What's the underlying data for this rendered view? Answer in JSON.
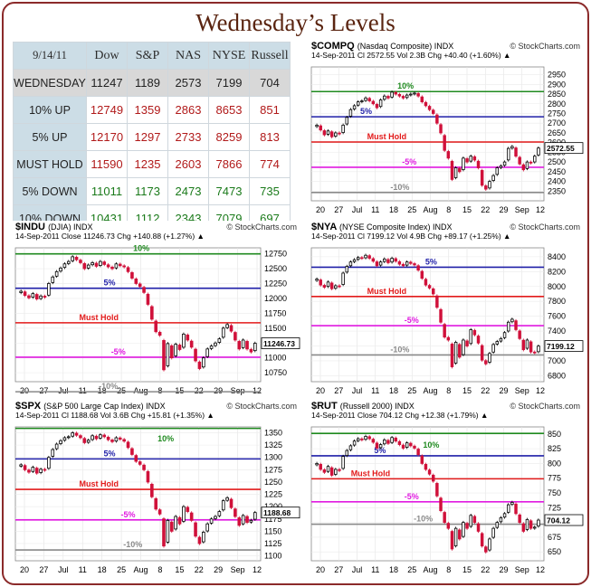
{
  "page_title": "Wednesday’s Levels",
  "table": {
    "date": "9/14/11",
    "columns": [
      "Dow",
      "S&P",
      "NAS",
      "NYSE",
      "Russell"
    ],
    "rows": [
      {
        "label": "WEDNESDAY",
        "values": [
          "11247",
          "1189",
          "2573",
          "7199",
          "704"
        ],
        "color": "#222222"
      },
      {
        "label": "10% UP",
        "values": [
          "12749",
          "1359",
          "2863",
          "8653",
          "851"
        ],
        "color": "#b11a1a"
      },
      {
        "label": "5% UP",
        "values": [
          "12170",
          "1297",
          "2733",
          "8259",
          "813"
        ],
        "color": "#b11a1a"
      },
      {
        "label": "MUST HOLD",
        "values": [
          "11590",
          "1235",
          "2603",
          "7866",
          "774"
        ],
        "color": "#b11a1a"
      },
      {
        "label": "5% DOWN",
        "values": [
          "11011",
          "1173",
          "2473",
          "7473",
          "735"
        ],
        "color": "#1a7a1a"
      },
      {
        "label": "10% DOWN",
        "values": [
          "10431",
          "1112",
          "2343",
          "7079",
          "697"
        ],
        "color": "#1a7a1a"
      }
    ]
  },
  "colors": {
    "green_level": "#1f8a1f",
    "blue_level": "#1f1fa8",
    "red_level": "#e21a1a",
    "magenta_level": "#e01ae0",
    "gray_level": "#8a8a8a",
    "up_bar": "#000000",
    "down_bar": "#d0113a"
  },
  "chart_data": [
    {
      "type": "candlestick",
      "id": "compq",
      "symbol": "$COMPQ",
      "name": "(Nasdaq Composite)",
      "tag": "INDX",
      "credit": "© StockCharts.com",
      "info": "14-Sep-2011    Cl 2572.55  Vol 2.3B  Chg +40.40 (+1.60%) ▲",
      "legend": "■ $COMPQ (Daily) 2572.55",
      "last_label": "2572.55",
      "ylim": [
        2300,
        2990
      ],
      "yticks": [
        2350,
        2400,
        2450,
        2500,
        2550,
        2600,
        2650,
        2700,
        2750,
        2800,
        2850,
        2900,
        2950
      ],
      "xticks": [
        "20",
        "27",
        "Jul",
        "11",
        "18",
        "25",
        "Aug",
        "8",
        "15",
        "22",
        "29",
        "Sep",
        "12"
      ],
      "levels": [
        {
          "value": 2863,
          "label": "10%",
          "color": "green",
          "label_pos": 0.37
        },
        {
          "value": 2733,
          "label": "5%",
          "color": "blue",
          "label_pos": 0.21
        },
        {
          "value": 2603,
          "label": "Must Hold",
          "color": "red",
          "label_pos": 0.24
        },
        {
          "value": 2473,
          "label": "-5%",
          "color": "magenta",
          "label_pos": 0.39
        },
        {
          "value": 2343,
          "label": "-10%",
          "color": "gray",
          "label_pos": 0.34
        }
      ],
      "closes": [
        2690,
        2665,
        2640,
        2660,
        2630,
        2650,
        2645,
        2690,
        2730,
        2770,
        2790,
        2810,
        2815,
        2830,
        2815,
        2800,
        2780,
        2820,
        2840,
        2830,
        2860,
        2850,
        2840,
        2830,
        2845,
        2850,
        2855,
        2840,
        2810,
        2790,
        2770,
        2750,
        2700,
        2650,
        2560,
        2520,
        2410,
        2470,
        2450,
        2520,
        2500,
        2530,
        2510,
        2470,
        2380,
        2360,
        2400,
        2430,
        2470,
        2480,
        2500,
        2570,
        2580,
        2530,
        2490,
        2460,
        2500,
        2495,
        2530,
        2572
      ]
    },
    {
      "type": "candlestick",
      "id": "indu",
      "symbol": "$INDU",
      "name": "(DJIA)",
      "tag": "INDX",
      "credit": "© StockCharts.com",
      "info": "14-Sep-2011    Close 11246.73  Chg +140.88 (+1.27%) ▲",
      "legend": "■ $INDU (Daily) 11246.73",
      "last_label": "11246.73",
      "ylim": [
        10600,
        12850
      ],
      "yticks": [
        10750,
        11000,
        11250,
        11500,
        11750,
        12000,
        12250,
        12500,
        12750
      ],
      "xticks": [
        "20",
        "27",
        "Jul",
        "11",
        "18",
        "25",
        "Aug",
        "8",
        "15",
        "22",
        "29",
        "Sep",
        "12"
      ],
      "levels": [
        {
          "value": 12749,
          "label": "10%",
          "color": "green",
          "label_pos": 0.48
        },
        {
          "value": 12170,
          "label": "5%",
          "color": "blue",
          "label_pos": 0.36
        },
        {
          "value": 11590,
          "label": "Must Hold",
          "color": "red",
          "label_pos": 0.26
        },
        {
          "value": 11011,
          "label": "-5%",
          "color": "magenta",
          "label_pos": 0.39
        },
        {
          "value": 10431,
          "label": "-10%",
          "color": "gray",
          "label_pos": 0.34
        }
      ],
      "closes": [
        12120,
        12050,
        12010,
        12080,
        11990,
        12040,
        12020,
        12250,
        12360,
        12450,
        12510,
        12580,
        12620,
        12700,
        12650,
        12600,
        12500,
        12560,
        12600,
        12540,
        12620,
        12570,
        12530,
        12500,
        12580,
        12550,
        12530,
        12450,
        12340,
        12250,
        12200,
        12100,
        11900,
        11650,
        11440,
        11380,
        10800,
        11240,
        11000,
        11230,
        11140,
        11400,
        11300,
        11180,
        10950,
        10820,
        11000,
        11150,
        11200,
        11250,
        11320,
        11500,
        11560,
        11450,
        11300,
        11150,
        11300,
        11150,
        11100,
        11246
      ]
    },
    {
      "type": "candlestick",
      "id": "nya",
      "symbol": "$NYA",
      "name": "(NYSE Composite Index)",
      "tag": "INDX",
      "credit": "© StockCharts.com",
      "info": "14-Sep-2011    Cl 7199.12  Vol 4.9B  Chg +89.17 (+1.25%) ▲",
      "legend": "■ $NYA (Daily) 7199.12",
      "last_label": "7199.12",
      "ylim": [
        6720,
        8520
      ],
      "yticks": [
        6800,
        7000,
        7200,
        7400,
        7600,
        7800,
        8000,
        8200,
        8400
      ],
      "xticks": [
        "20",
        "27",
        "Jul",
        "11",
        "18",
        "25",
        "Aug",
        "8",
        "15",
        "22",
        "29",
        "Sep",
        "12"
      ],
      "levels": [
        {
          "value": 8259,
          "label": "5%",
          "color": "blue",
          "label_pos": 0.49
        },
        {
          "value": 7866,
          "label": "Must Hold",
          "color": "red",
          "label_pos": 0.24
        },
        {
          "value": 7473,
          "label": "-5%",
          "color": "magenta",
          "label_pos": 0.4
        },
        {
          "value": 7079,
          "label": "-10%",
          "color": "gray",
          "label_pos": 0.34
        }
      ],
      "closes": [
        8100,
        8020,
        7990,
        8060,
        7970,
        8010,
        8000,
        8180,
        8270,
        8330,
        8360,
        8390,
        8380,
        8420,
        8380,
        8340,
        8280,
        8330,
        8370,
        8320,
        8380,
        8340,
        8300,
        8280,
        8330,
        8310,
        8290,
        8220,
        8110,
        8020,
        7980,
        7900,
        7720,
        7520,
        7320,
        7280,
        6920,
        7250,
        7050,
        7280,
        7200,
        7420,
        7350,
        7240,
        7010,
        6960,
        7100,
        7220,
        7260,
        7300,
        7380,
        7520,
        7560,
        7420,
        7300,
        7150,
        7280,
        7120,
        7110,
        7199
      ]
    },
    {
      "type": "candlestick",
      "id": "spx",
      "symbol": "$SPX",
      "name": "(S&P 500 Large Cap Index)",
      "tag": "INDX",
      "credit": "© StockCharts.com",
      "info": "14-Sep-2011    Cl 1188.68  Vol 3.6B  Chg +15.81 (+1.35%) ▲",
      "legend": "■ $SPX (Daily) 1188.68",
      "last_label": "1188.68",
      "ylim": [
        1090,
        1362
      ],
      "yticks": [
        1100,
        1125,
        1150,
        1175,
        1200,
        1225,
        1250,
        1275,
        1300,
        1325,
        1350
      ],
      "xticks": [
        "20",
        "27",
        "Jul",
        "11",
        "18",
        "25",
        "Aug",
        "8",
        "15",
        "22",
        "29",
        "Sep",
        "12"
      ],
      "levels": [
        {
          "value": 1359,
          "label": "",
          "color": "green",
          "label_pos": 0.5
        },
        {
          "value": 1297,
          "label": "5%",
          "color": "blue",
          "label_pos": 0.36
        },
        {
          "value": 1235,
          "label": "Must Hold",
          "color": "red",
          "label_pos": 0.26
        },
        {
          "value": 1173,
          "label": "-5%",
          "color": "magenta",
          "label_pos": 0.43
        },
        {
          "value": 1112,
          "label": "-10%",
          "color": "gray",
          "label_pos": 0.44
        }
      ],
      "extra_labels": [
        {
          "value": 1338,
          "label": "10%",
          "color": "green",
          "label_pos": 0.58
        }
      ],
      "closes": [
        1285,
        1275,
        1270,
        1280,
        1268,
        1276,
        1274,
        1300,
        1316,
        1327,
        1334,
        1340,
        1342,
        1350,
        1345,
        1340,
        1330,
        1335,
        1344,
        1338,
        1346,
        1342,
        1336,
        1332,
        1340,
        1337,
        1333,
        1320,
        1306,
        1292,
        1286,
        1275,
        1250,
        1220,
        1195,
        1185,
        1120,
        1172,
        1150,
        1180,
        1165,
        1200,
        1190,
        1172,
        1140,
        1125,
        1148,
        1165,
        1175,
        1180,
        1190,
        1212,
        1218,
        1198,
        1180,
        1162,
        1182,
        1168,
        1172,
        1188
      ]
    },
    {
      "type": "candlestick",
      "id": "rut",
      "symbol": "$RUT",
      "name": "(Russell 2000)",
      "tag": "INDX",
      "credit": "© StockCharts.com",
      "info": "14-Sep-2011    Close 704.12  Chg +12.38 (+1.79%) ▲",
      "legend": "■ $RUT (Daily) 704.12",
      "last_label": "704.12",
      "ylim": [
        635,
        862
      ],
      "yticks": [
        650,
        675,
        700,
        725,
        750,
        775,
        800,
        825,
        850
      ],
      "xticks": [
        "20",
        "27",
        "Jul",
        "11",
        "18",
        "25",
        "Aug",
        "8",
        "15",
        "22",
        "29",
        "Sep",
        "12"
      ],
      "levels": [
        {
          "value": 851,
          "label": "",
          "color": "green",
          "label_pos": 0.5
        },
        {
          "value": 813,
          "label": "5%",
          "color": "blue",
          "label_pos": 0.27
        },
        {
          "value": 774,
          "label": "Must Hold",
          "color": "red",
          "label_pos": 0.17
        },
        {
          "value": 735,
          "label": "-5%",
          "color": "magenta",
          "label_pos": 0.4
        },
        {
          "value": 697,
          "label": "-10%",
          "color": "gray",
          "label_pos": 0.44
        }
      ],
      "extra_labels": [
        {
          "value": 831,
          "label": "10%",
          "color": "green",
          "label_pos": 0.48
        }
      ],
      "closes": [
        800,
        790,
        785,
        795,
        780,
        790,
        788,
        812,
        822,
        830,
        838,
        842,
        840,
        846,
        842,
        836,
        826,
        832,
        840,
        834,
        844,
        838,
        832,
        826,
        835,
        830,
        826,
        815,
        800,
        790,
        782,
        770,
        745,
        720,
        700,
        690,
        655,
        690,
        672,
        700,
        690,
        712,
        700,
        685,
        660,
        650,
        672,
        690,
        700,
        708,
        715,
        730,
        734,
        715,
        700,
        685,
        705,
        690,
        692,
        704
      ]
    }
  ]
}
